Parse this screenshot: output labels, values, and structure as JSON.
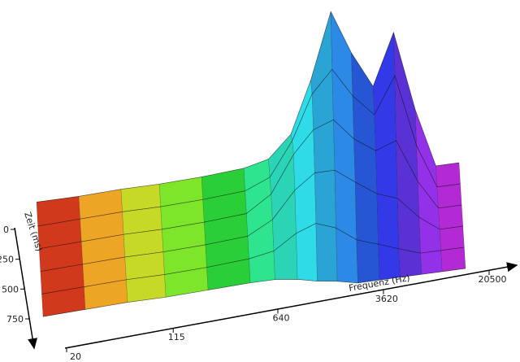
{
  "chart_data": {
    "type": "waterfall3d",
    "x_label": "Frequenz (Hz)",
    "y_label": "Zeit (ms)",
    "x": [
      20,
      40,
      80,
      150,
      300,
      600,
      900,
      1300,
      1800,
      2500,
      3500,
      5000,
      7000,
      10000,
      14000,
      20500
    ],
    "time_ms": [
      0,
      150,
      300,
      450,
      600,
      750
    ],
    "z": [
      [
        12,
        12,
        13,
        13,
        14,
        16,
        20,
        35,
        70,
        115,
        85,
        60,
        95,
        40,
        0,
        0
      ],
      [
        10,
        11,
        12,
        12,
        13,
        15,
        22,
        45,
        75,
        90,
        70,
        55,
        80,
        30,
        0,
        0
      ],
      [
        9,
        10,
        11,
        11,
        12,
        14,
        25,
        50,
        65,
        70,
        55,
        45,
        50,
        20,
        0,
        0
      ],
      [
        8,
        9,
        10,
        10,
        11,
        13,
        22,
        40,
        50,
        50,
        40,
        30,
        25,
        10,
        0,
        0
      ],
      [
        7,
        8,
        9,
        9,
        10,
        12,
        15,
        25,
        30,
        25,
        15,
        10,
        5,
        0,
        0,
        0
      ],
      [
        6,
        7,
        8,
        8,
        9,
        10,
        10,
        8,
        5,
        3,
        0,
        0,
        0,
        0,
        0,
        0
      ]
    ],
    "xlim": [
      20,
      20500
    ],
    "xticks": [
      20,
      115,
      640,
      3620,
      20500
    ],
    "xlog": true,
    "ylim": [
      0,
      750
    ],
    "yticks": [
      0,
      250,
      500,
      750
    ],
    "colormap": [
      "#e0201c",
      "#f2ee2a",
      "#2ee02a",
      "#2ee8e6",
      "#2a3ae6",
      "#e82ae8"
    ]
  }
}
